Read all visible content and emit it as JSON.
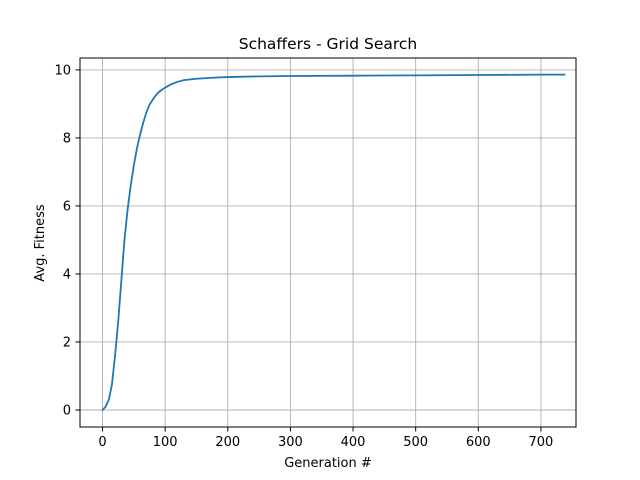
{
  "chart_data": {
    "type": "line",
    "title": "Schaffers - Grid Search",
    "xlabel": "Generation #",
    "ylabel": "Avg. Fitness",
    "xlim": [
      -36,
      756
    ],
    "ylim": [
      -0.5,
      10.35
    ],
    "xticks": [
      "0",
      "100",
      "200",
      "300",
      "400",
      "500",
      "600",
      "700"
    ],
    "yticks": [
      "0",
      "2",
      "4",
      "6",
      "8",
      "10"
    ],
    "grid": true,
    "colors": {
      "line": "#1f77b4",
      "grid": "#b0b0b0",
      "axes": "#000000"
    },
    "series": [
      {
        "x": [
          0,
          5,
          10,
          15,
          20,
          25,
          30,
          35,
          40,
          45,
          50,
          55,
          60,
          65,
          70,
          75,
          80,
          85,
          90,
          95,
          100,
          110,
          120,
          130,
          150,
          175,
          200,
          250,
          300,
          400,
          500,
          600,
          700,
          738
        ],
        "y": [
          0,
          0.1,
          0.3,
          0.75,
          1.6,
          2.6,
          3.8,
          5.0,
          5.9,
          6.6,
          7.2,
          7.7,
          8.1,
          8.45,
          8.75,
          8.98,
          9.12,
          9.25,
          9.35,
          9.42,
          9.48,
          9.58,
          9.65,
          9.7,
          9.74,
          9.77,
          9.79,
          9.81,
          9.82,
          9.83,
          9.84,
          9.85,
          9.86,
          9.86
        ]
      }
    ]
  }
}
